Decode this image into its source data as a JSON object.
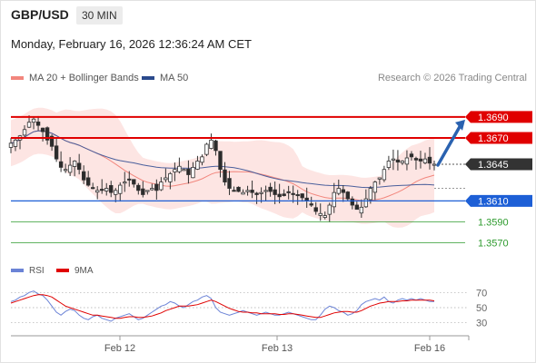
{
  "header": {
    "symbol": "GBP/USD",
    "timeframe": "30 MIN",
    "datetime": "Monday, February 16, 2026 12:36:24 AM CET",
    "source": "Research © 2026 Trading Central"
  },
  "legend": {
    "bollinger_label": "MA 20 + Bollinger Bands",
    "ma50_label": "MA 50",
    "rsi_label": "RSI",
    "rsi_ma_label": "9MA"
  },
  "colors": {
    "resistance": "#e00000",
    "support": "#1d5fd6",
    "minor_support": "#2e9b2e",
    "bollinger_fill": "#fde0de",
    "ma20": "#f2867d",
    "ma50": "#4a5f9c",
    "candle_up": "#4a4a4a",
    "candle_down": "#2b2b2b",
    "current": "#333333",
    "arrow": "#2a62b0",
    "rsi": "#6b83d6",
    "rsi_ma": "#e00000"
  },
  "chart_data": [
    {
      "type": "candlestick",
      "x_ticks": [
        "Feb 12",
        "Feb 13",
        "Feb 16"
      ],
      "ylim": [
        1.3555,
        1.3715
      ],
      "price_levels": [
        {
          "label": "1.3690",
          "value": 1.369,
          "kind": "resistance"
        },
        {
          "label": "1.3670",
          "value": 1.367,
          "kind": "resistance"
        },
        {
          "label": "1.3645",
          "value": 1.3645,
          "kind": "current"
        },
        {
          "label": "1.3610",
          "value": 1.361,
          "kind": "support"
        },
        {
          "label": "1.3590",
          "value": 1.359,
          "kind": "minor_support"
        },
        {
          "label": "1.3570",
          "value": 1.357,
          "kind": "minor_support"
        }
      ],
      "series": [
        {
          "name": "MA 20 + Bollinger Bands"
        },
        {
          "name": "MA 50"
        }
      ],
      "close_path": [
        1.3665,
        1.3668,
        1.3672,
        1.3678,
        1.3685,
        1.3688,
        1.3682,
        1.3676,
        1.3668,
        1.3662,
        1.365,
        1.3642,
        1.364,
        1.3644,
        1.3648,
        1.364,
        1.363,
        1.3625,
        1.3622,
        1.362,
        1.362,
        1.3622,
        1.3618,
        1.362,
        1.3625,
        1.3628,
        1.363,
        1.3626,
        1.362,
        1.3616,
        1.362,
        1.3622,
        1.362,
        1.3628,
        1.3632,
        1.3636,
        1.364,
        1.3643,
        1.364,
        1.3635,
        1.3642,
        1.3648,
        1.3652,
        1.3664,
        1.3668,
        1.3658,
        1.364,
        1.3628,
        1.3622,
        1.362,
        1.3619,
        1.3618,
        1.362,
        1.3618,
        1.3616,
        1.3618,
        1.362,
        1.3619,
        1.3616,
        1.3614,
        1.3615,
        1.3618,
        1.3616,
        1.3615,
        1.3613,
        1.361,
        1.3606,
        1.36,
        1.3598,
        1.3596,
        1.3606,
        1.3618,
        1.3622,
        1.3618,
        1.3612,
        1.3606,
        1.3602,
        1.3604,
        1.3612,
        1.3622,
        1.3628,
        1.3632,
        1.364,
        1.3648,
        1.365,
        1.3647,
        1.3648,
        1.3651,
        1.3652,
        1.3649,
        1.3648,
        1.365,
        1.3646,
        1.3645
      ]
    },
    {
      "type": "line",
      "title": "RSI",
      "y_ticks": [
        70,
        50,
        30
      ],
      "ylim": [
        20,
        80
      ],
      "series": [
        {
          "name": "RSI",
          "values": [
            58,
            60,
            64,
            66,
            70,
            72,
            68,
            66,
            60,
            52,
            44,
            40,
            45,
            48,
            46,
            40,
            36,
            34,
            38,
            40,
            36,
            34,
            32,
            36,
            38,
            40,
            42,
            38,
            34,
            36,
            40,
            44,
            48,
            52,
            54,
            58,
            56,
            52,
            50,
            54,
            58,
            60,
            64,
            66,
            62,
            50,
            44,
            42,
            40,
            42,
            44,
            46,
            44,
            42,
            40,
            42,
            44,
            42,
            40,
            40,
            42,
            44,
            42,
            40,
            38,
            36,
            34,
            34,
            40,
            48,
            52,
            50,
            46,
            44,
            40,
            42,
            46,
            54,
            58,
            60,
            62,
            60,
            64,
            58,
            56,
            60,
            62,
            60,
            62,
            60,
            62,
            60,
            58,
            58
          ]
        },
        {
          "name": "9MA",
          "values": [
            56,
            58,
            60,
            62,
            64,
            66,
            67,
            67,
            66,
            64,
            60,
            56,
            52,
            50,
            48,
            46,
            44,
            42,
            40,
            40,
            39,
            38,
            37,
            36,
            36,
            37,
            38,
            38,
            37,
            37,
            38,
            39,
            41,
            43,
            46,
            48,
            50,
            52,
            52,
            52,
            53,
            54,
            56,
            58,
            60,
            58,
            55,
            52,
            49,
            47,
            45,
            44,
            44,
            43,
            43,
            42,
            42,
            42,
            42,
            41,
            41,
            42,
            42,
            41,
            40,
            39,
            38,
            37,
            37,
            39,
            41,
            43,
            44,
            45,
            45,
            44,
            44,
            46,
            49,
            52,
            54,
            56,
            57,
            58,
            58,
            58,
            59,
            59,
            60,
            60,
            60,
            60,
            60,
            59
          ]
        }
      ]
    }
  ]
}
